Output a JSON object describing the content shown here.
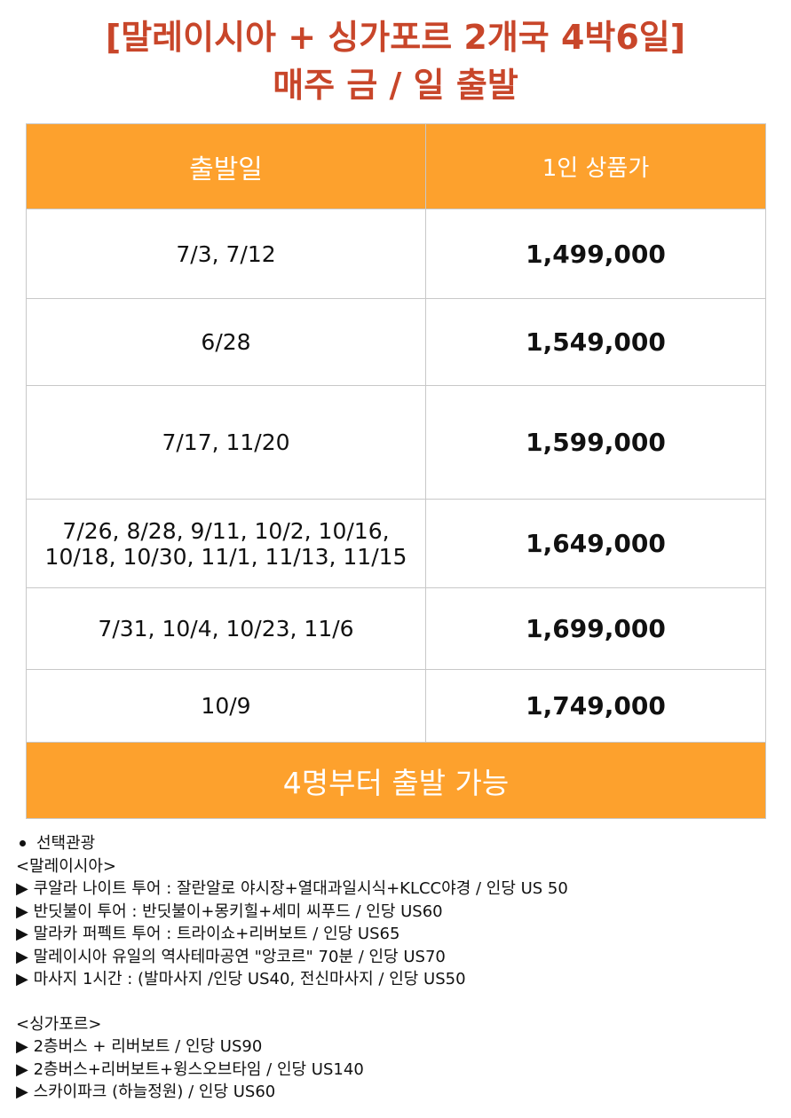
{
  "title": {
    "line1": "[말레이시아 + 싱가포르 2개국 4박6일]",
    "line2": "매주 금 / 일 출발"
  },
  "table": {
    "headers": {
      "date": "출발일",
      "price": "1인 상품가"
    },
    "rows": [
      {
        "dates": [
          "7/3, 7/12"
        ],
        "price": "1,499,000"
      },
      {
        "dates": [
          "6/28"
        ],
        "price": "1,549,000"
      },
      {
        "dates": [
          "7/17, 11/20"
        ],
        "price": "1,599,000"
      },
      {
        "dates": [
          "7/26, 8/28, 9/11, 10/2, 10/16,",
          "10/18, 10/30, 11/1, 11/13, 11/15"
        ],
        "price": "1,649,000"
      },
      {
        "dates": [
          "7/31, 10/4, 10/23, 11/6"
        ],
        "price": "1,699,000"
      },
      {
        "dates": [
          "10/9"
        ],
        "price": "1,749,000"
      }
    ],
    "footer": "4명부터 출발 가능"
  },
  "notes": {
    "heading": "선택관광",
    "malaysia_label": "<말레이시아>",
    "malaysia_items": [
      "▶ 쿠알라 나이트 투어 : 잘란알로 야시장+열대과일시식+KLCC야경 / 인당 US 50",
      "▶ 반딧불이 투어 : 반딧불이+몽키힐+세미 씨푸드 / 인당 US60",
      "▶ 말라카 퍼펙트 투어 : 트라이쇼+리버보트 / 인당 US65",
      "▶ 말레이시아 유일의 역사테마공연 \"앙코르\" 70분 / 인당 US70",
      "▶ 마사지 1시간 : (발마사지 /인당 US40, 전신마사지 / 인당 US50"
    ],
    "singapore_label": "<싱가포르>",
    "singapore_items": [
      "▶ 2층버스 + 리버보트 / 인당 US90",
      "▶ 2층버스+리버보트+윙스오브타임 / 인당 US140",
      "▶ 스카이파크 (하늘정원) / 인당 US60"
    ]
  }
}
